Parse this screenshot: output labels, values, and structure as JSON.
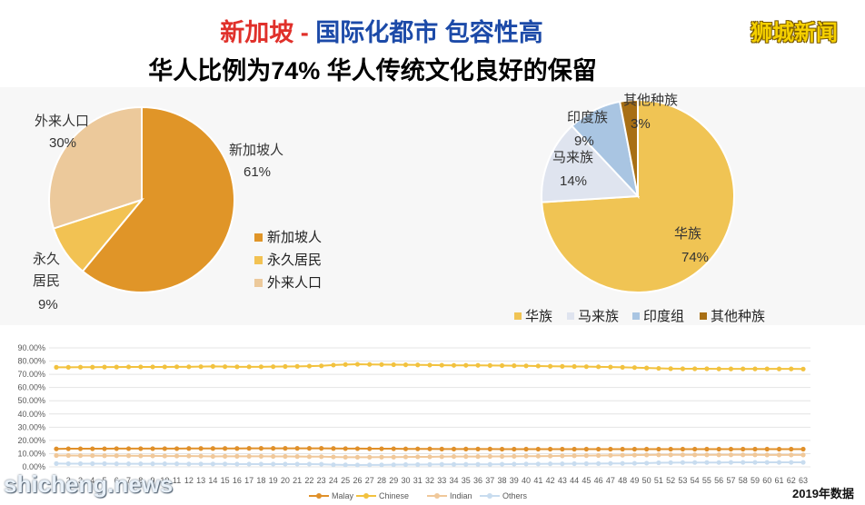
{
  "header": {
    "title_part1": "新加坡",
    "title_dash": " - ",
    "title_part2": "国际化都市 包容性高",
    "subtitle": "华人比例为74% 华人传统文化良好的保留",
    "brand": "狮城新闻",
    "year_note": "2019年数据",
    "watermark": "shicheng.news"
  },
  "chart_data": [
    {
      "type": "pie",
      "categories": [
        "新加坡人",
        "永久居民",
        "外来人口"
      ],
      "values": [
        61,
        9,
        30
      ],
      "data_labels": [
        "61%",
        "9%",
        "30%"
      ],
      "colors": [
        "#e09528",
        "#f2c253",
        "#ecc99b"
      ],
      "legend": [
        "新加坡人",
        "永久居民",
        "外来人口"
      ],
      "legend_position": "right"
    },
    {
      "type": "pie",
      "categories": [
        "华族",
        "马来族",
        "印度族",
        "其他种族"
      ],
      "values": [
        74,
        14,
        9,
        3
      ],
      "data_labels": [
        "74%",
        "14%",
        "9%",
        "3%"
      ],
      "colors": [
        "#f0c454",
        "#dfe4ef",
        "#a9c5e2",
        "#a86f14"
      ],
      "legend": [
        "华族",
        "马来族",
        "印度组",
        "其他种族"
      ],
      "legend_position": "bottom"
    },
    {
      "type": "line",
      "x": [
        1,
        2,
        3,
        4,
        5,
        6,
        7,
        8,
        9,
        10,
        11,
        12,
        13,
        14,
        15,
        16,
        17,
        18,
        19,
        20,
        21,
        22,
        23,
        24,
        25,
        26,
        27,
        28,
        29,
        30,
        31,
        32,
        33,
        34,
        35,
        36,
        37,
        38,
        39,
        40,
        41,
        42,
        43,
        44,
        45,
        46,
        47,
        48,
        49,
        50,
        51,
        52,
        53,
        54,
        55,
        56,
        57,
        58,
        59,
        60,
        61,
        62,
        63
      ],
      "x_tick_labels": [
        "1",
        "2",
        "3",
        "4",
        "5",
        "6",
        "7",
        "8",
        "9",
        "10",
        "11",
        "12",
        "13",
        "14",
        "15",
        "16",
        "17",
        "18",
        "19",
        "20",
        "21",
        "22",
        "23",
        "24",
        "25",
        "26",
        "27",
        "28",
        "29",
        "30",
        "31",
        "32",
        "33",
        "34",
        "35",
        "36",
        "37",
        "38",
        "39",
        "40",
        "41",
        "42",
        "43",
        "44",
        "45",
        "46",
        "47",
        "48",
        "49",
        "50",
        "51",
        "52",
        "53",
        "54",
        "55",
        "56",
        "57",
        "58",
        "59",
        "60",
        "61",
        "62",
        "63"
      ],
      "y_ticks": [
        "0.00%",
        "10.00%",
        "20.00%",
        "30.00%",
        "40.00%",
        "50.00%",
        "60.00%",
        "70.00%",
        "80.00%",
        "90.00%"
      ],
      "ylim": [
        0,
        90
      ],
      "grid": true,
      "legend_position": "bottom",
      "series": [
        {
          "name": "Malay",
          "color": "#e0902a",
          "values": [
            13.6,
            13.7,
            13.7,
            13.7,
            13.7,
            13.8,
            13.8,
            13.8,
            13.8,
            13.8,
            13.8,
            13.9,
            13.9,
            13.9,
            13.9,
            13.9,
            14.0,
            14.0,
            14.0,
            14.0,
            14.0,
            14.0,
            14.0,
            13.9,
            13.8,
            13.8,
            13.7,
            13.7,
            13.7,
            13.6,
            13.6,
            13.6,
            13.5,
            13.5,
            13.5,
            13.5,
            13.5,
            13.4,
            13.4,
            13.4,
            13.4,
            13.4,
            13.4,
            13.4,
            13.4,
            13.4,
            13.4,
            13.4,
            13.4,
            13.4,
            13.4,
            13.4,
            13.4,
            13.4,
            13.4,
            13.4,
            13.4,
            13.4,
            13.4,
            13.4,
            13.4,
            13.4,
            13.4
          ]
        },
        {
          "name": "Chinese",
          "color": "#f2c23f",
          "values": [
            75.3,
            75.3,
            75.4,
            75.4,
            75.5,
            75.5,
            75.6,
            75.6,
            75.6,
            75.6,
            75.7,
            75.7,
            75.8,
            76.0,
            75.8,
            75.7,
            75.7,
            75.7,
            75.8,
            75.9,
            76.0,
            76.2,
            76.4,
            77.0,
            77.4,
            77.6,
            77.5,
            77.4,
            77.3,
            77.2,
            77.1,
            77.0,
            76.9,
            76.8,
            76.8,
            76.8,
            76.7,
            76.6,
            76.5,
            76.4,
            76.3,
            76.1,
            76.0,
            75.9,
            75.8,
            75.7,
            75.5,
            75.3,
            75.1,
            74.8,
            74.5,
            74.3,
            74.2,
            74.2,
            74.2,
            74.1,
            74.1,
            74.1,
            74.1,
            74.1,
            74.1,
            74.1,
            74.0
          ]
        },
        {
          "name": "Indian",
          "color": "#f0c89a",
          "values": [
            8.6,
            8.6,
            8.5,
            8.5,
            8.4,
            8.4,
            8.4,
            8.3,
            8.3,
            8.2,
            8.2,
            8.2,
            8.1,
            7.9,
            8.0,
            8.0,
            8.0,
            8.0,
            7.9,
            7.9,
            7.8,
            7.7,
            7.7,
            7.5,
            7.3,
            7.3,
            7.3,
            7.4,
            7.4,
            7.5,
            7.6,
            7.6,
            7.7,
            7.8,
            7.8,
            7.8,
            7.9,
            7.9,
            8.0,
            8.1,
            8.1,
            8.2,
            8.3,
            8.4,
            8.5,
            8.6,
            8.7,
            8.8,
            8.9,
            9.0,
            9.1,
            9.1,
            9.1,
            9.1,
            9.1,
            9.1,
            9.1,
            9.1,
            9.1,
            9.0,
            9.0,
            9.0,
            9.0
          ]
        },
        {
          "name": "Others",
          "color": "#c8dcef",
          "values": [
            2.5,
            2.4,
            2.4,
            2.4,
            2.4,
            2.3,
            2.3,
            2.3,
            2.3,
            2.3,
            2.3,
            2.2,
            2.2,
            2.2,
            2.2,
            2.1,
            2.1,
            2.1,
            2.1,
            2.1,
            2.1,
            2.1,
            2.0,
            1.6,
            1.5,
            1.4,
            1.5,
            1.5,
            1.6,
            1.7,
            1.7,
            1.8,
            1.9,
            1.9,
            1.9,
            1.9,
            1.9,
            2.0,
            2.1,
            2.2,
            2.2,
            2.3,
            2.3,
            2.4,
            2.4,
            2.5,
            2.6,
            2.6,
            2.7,
            2.8,
            3.1,
            3.2,
            3.3,
            3.3,
            3.3,
            3.3,
            3.4,
            3.4,
            3.4,
            3.4,
            3.4,
            3.4,
            3.4
          ]
        }
      ]
    }
  ]
}
